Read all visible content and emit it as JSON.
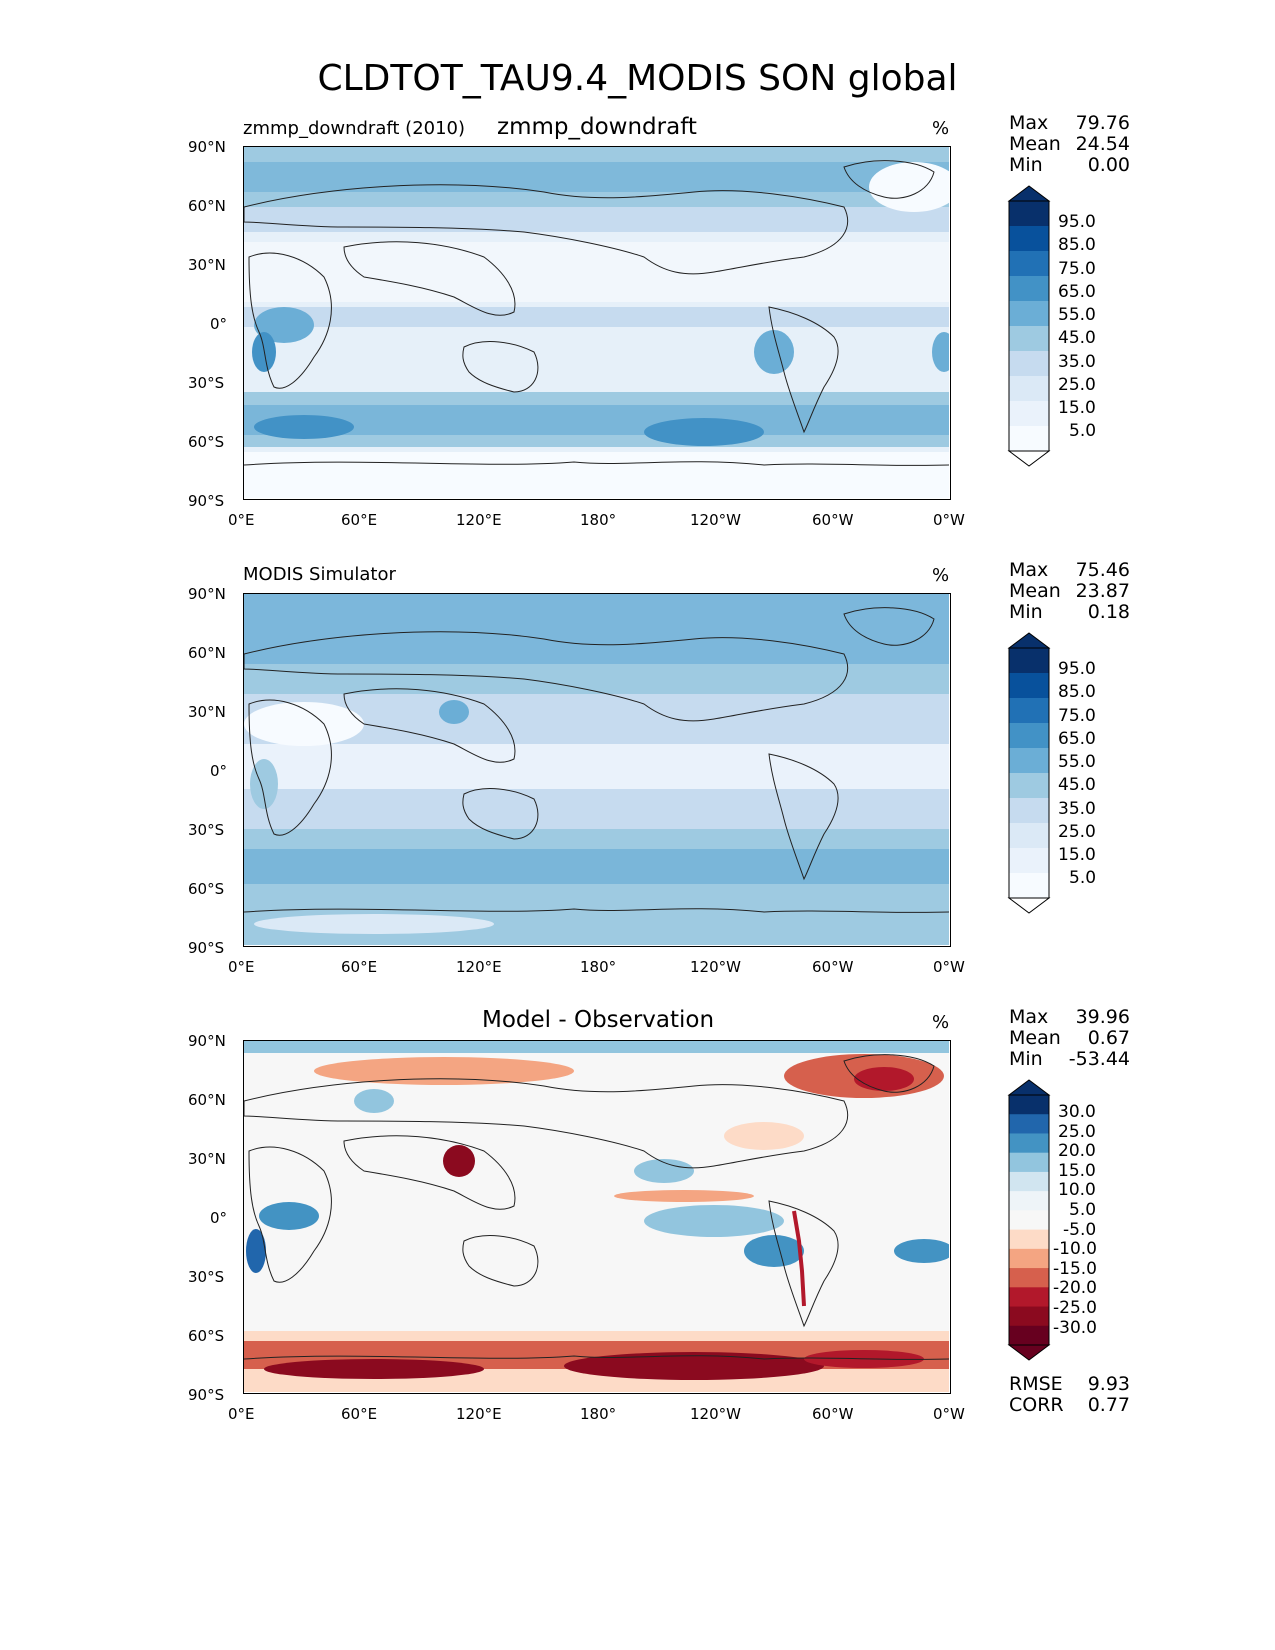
{
  "title": "CLDTOT_TAU9.4_MODIS SON global",
  "axes": {
    "lat_labels": [
      "90°N",
      "60°N",
      "30°N",
      "0°",
      "30°S",
      "60°S",
      "90°S"
    ],
    "lon_labels": [
      "0°E",
      "60°E",
      "120°E",
      "180°",
      "120°W",
      "60°W",
      "0°W"
    ]
  },
  "panels": [
    {
      "left_label": "zmmp_downdraft (2010)",
      "center_label": "zmmp_downdraft",
      "units": "%",
      "stats": [
        {
          "label": "Max",
          "value": "79.76"
        },
        {
          "label": "Mean",
          "value": "24.54"
        },
        {
          "label": "Min",
          "value": "0.00"
        }
      ],
      "colorbar": {
        "labels": [
          "95.0",
          "85.0",
          "75.0",
          "65.0",
          "55.0",
          "45.0",
          "35.0",
          "25.0",
          "15.0",
          "5.0"
        ],
        "colors": [
          "#08306b",
          "#08519c",
          "#2171b5",
          "#4292c6",
          "#6baed6",
          "#9ecae1",
          "#c6dbef",
          "#dbe9f6",
          "#eaf2fb",
          "#f7fbff"
        ]
      }
    },
    {
      "left_label": "MODIS Simulator",
      "center_label": "",
      "units": "%",
      "stats": [
        {
          "label": "Max",
          "value": "75.46"
        },
        {
          "label": "Mean",
          "value": "23.87"
        },
        {
          "label": "Min",
          "value": "0.18"
        }
      ],
      "colorbar": {
        "labels": [
          "95.0",
          "85.0",
          "75.0",
          "65.0",
          "55.0",
          "45.0",
          "35.0",
          "25.0",
          "15.0",
          "5.0"
        ],
        "colors": [
          "#08306b",
          "#08519c",
          "#2171b5",
          "#4292c6",
          "#6baed6",
          "#9ecae1",
          "#c6dbef",
          "#dbe9f6",
          "#eaf2fb",
          "#f7fbff"
        ]
      }
    },
    {
      "left_label": "",
      "center_label": "Model - Observation",
      "units": "%",
      "stats": [
        {
          "label": "Max",
          "value": "39.96"
        },
        {
          "label": "Mean",
          "value": "0.67"
        },
        {
          "label": "Min",
          "value": "-53.44"
        }
      ],
      "extra_stats": [
        {
          "label": "RMSE",
          "value": "9.93"
        },
        {
          "label": "CORR",
          "value": "0.77"
        }
      ],
      "colorbar": {
        "labels": [
          "30.0",
          "25.0",
          "20.0",
          "15.0",
          "10.0",
          "5.0",
          "-5.0",
          "-10.0",
          "-15.0",
          "-20.0",
          "-25.0",
          "-30.0"
        ],
        "colors": [
          "#08306b",
          "#2166ac",
          "#4393c3",
          "#92c5de",
          "#d1e5f0",
          "#eef4f8",
          "#f7f7f7",
          "#fddbc7",
          "#f4a582",
          "#d6604d",
          "#b2182b",
          "#8b0a1f",
          "#67001f"
        ]
      }
    }
  ]
}
